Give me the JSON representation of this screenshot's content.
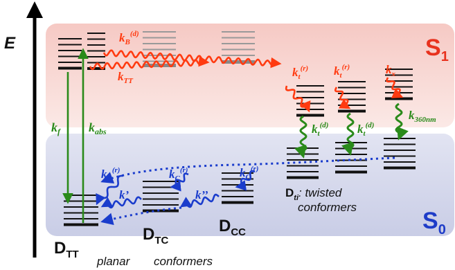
{
  "axis": {
    "label": "E"
  },
  "states": {
    "s1": {
      "main": "S",
      "sub": "1",
      "color": "#e8321e"
    },
    "s0": {
      "main": "S",
      "sub": "0",
      "color": "#1e3cc8"
    }
  },
  "colors": {
    "red": "#ff3a10",
    "blue": "#1a3ccc",
    "green": "#2a8a1a",
    "s1_band": "#f7d3cf",
    "s0_band": "#d4d8ee"
  },
  "rates": {
    "kB_d": {
      "main": "k",
      "sub": "B",
      "sup": "(d)"
    },
    "kTT": {
      "main": "k",
      "sub": "TT"
    },
    "kt_r_1": {
      "main": "k",
      "sub": "t",
      "sup": "(r)"
    },
    "kt_r_2": {
      "main": "k",
      "sub": "t",
      "sup": "(r)"
    },
    "kx": {
      "main": "k",
      "sub": "x"
    },
    "kf": {
      "main": "k",
      "sub": "f"
    },
    "kabs": {
      "main": "k",
      "sub": "abs"
    },
    "kt_d_1": {
      "main": "k",
      "sub": "t",
      "sup": "(d)"
    },
    "kt_d_2": {
      "main": "k",
      "sub": "t",
      "sup": "(d)"
    },
    "k360": {
      "main": "k",
      "sub": "360nm"
    },
    "kB_r": {
      "main": "k",
      "sub": "B",
      "sup": "(r)"
    },
    "kC_r_1": {
      "main": "k",
      "sub": "C",
      "sup": "(r)"
    },
    "kC_r_2": {
      "main": "k",
      "sub": "C",
      "sup": "(r)"
    },
    "kprime": {
      "main": "k’"
    },
    "kdprime": {
      "main": "k’’"
    }
  },
  "conformers": {
    "dtt": {
      "main": "D",
      "sub": "TT"
    },
    "dtc": {
      "main": "D",
      "sub": "TC"
    },
    "dcc": {
      "main": "D",
      "sub": "CC"
    },
    "dti": {
      "main": "D",
      "sub": "ti",
      "text": ": twisted"
    },
    "conformers_right": "conformers",
    "planar": "planar",
    "conformers_bottom": "conformers"
  }
}
